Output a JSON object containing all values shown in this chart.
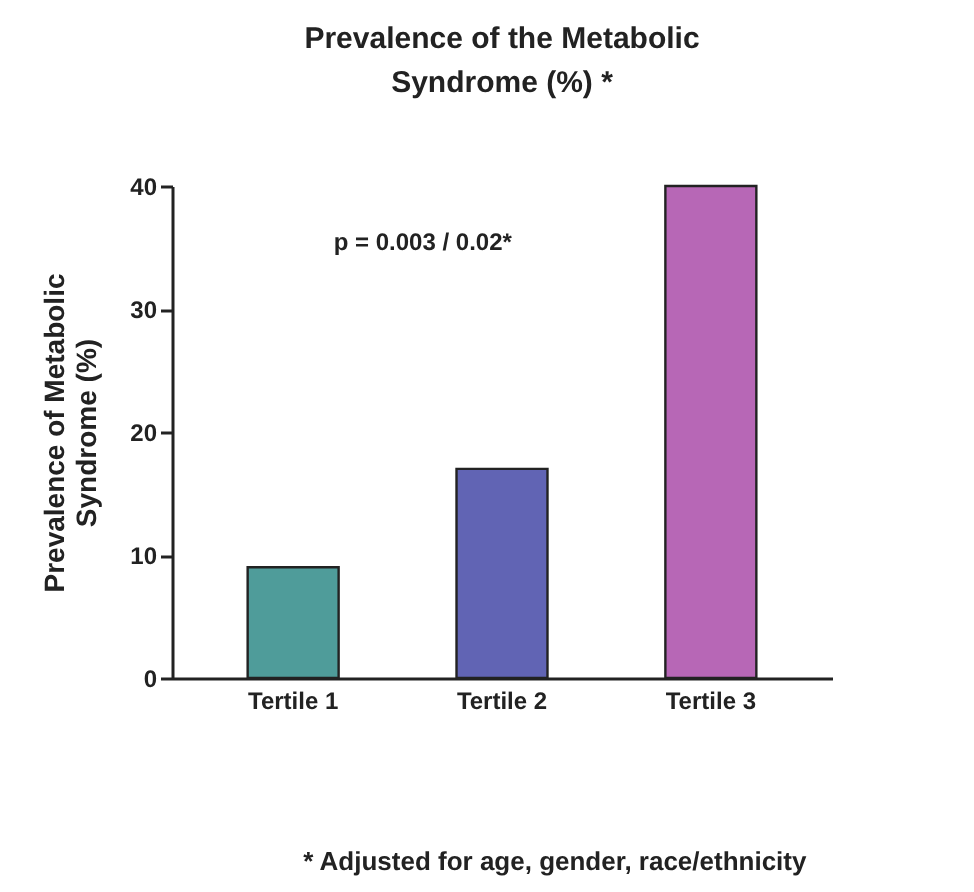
{
  "chart_data": {
    "type": "bar",
    "title": "Prevalence of the Metabolic Syndrome (%) *",
    "ylabel": "Prevalence of Metabolic Syndrome (%)",
    "categories": [
      "Tertile 1",
      "Tertile 2",
      "Tertile 3"
    ],
    "values": [
      9,
      17,
      40
    ],
    "colors": [
      "#4f9c9a",
      "#6164b4",
      "#b767b6"
    ],
    "ylim": [
      0,
      40
    ],
    "yticks": [
      0,
      10,
      20,
      30,
      40
    ],
    "grid": false,
    "annotations": [
      "p = 0.003 / 0.02*",
      "* Adjusted for age, gender, race/ethnicity"
    ]
  }
}
